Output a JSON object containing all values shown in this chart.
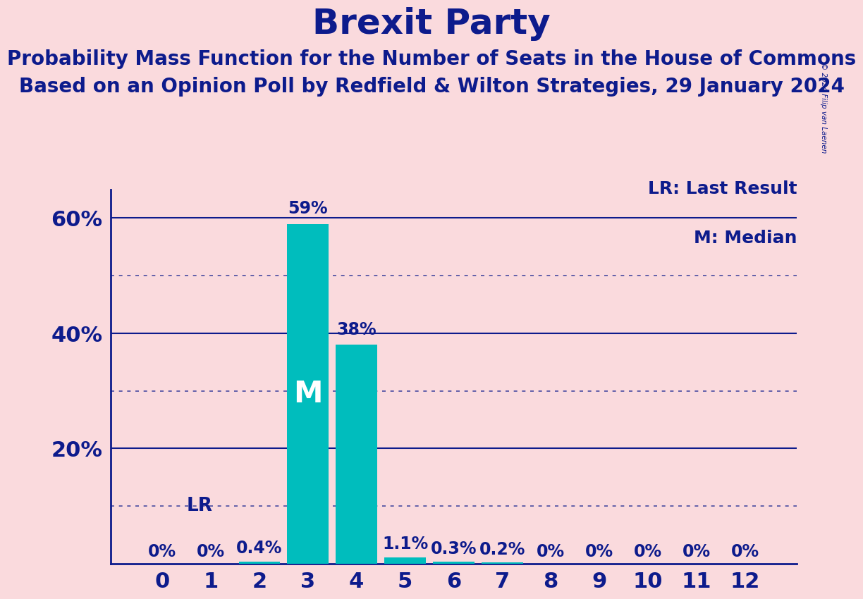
{
  "title": "Brexit Party",
  "subtitle1": "Probability Mass Function for the Number of Seats in the House of Commons",
  "subtitle2": "Based on an Opinion Poll by Redfield & Wilton Strategies, 29 January 2024",
  "copyright": "© 2024 Filip van Laenen",
  "categories": [
    0,
    1,
    2,
    3,
    4,
    5,
    6,
    7,
    8,
    9,
    10,
    11,
    12
  ],
  "values": [
    0.0,
    0.0,
    0.4,
    59.0,
    38.0,
    1.1,
    0.3,
    0.2,
    0.0,
    0.0,
    0.0,
    0.0,
    0.0
  ],
  "labels": [
    "0%",
    "0%",
    "0.4%",
    "59%",
    "38%",
    "1.1%",
    "0.3%",
    "0.2%",
    "0%",
    "0%",
    "0%",
    "0%",
    "0%"
  ],
  "bar_color": "#00BDBD",
  "median_bar": 3,
  "ylim": [
    0,
    65
  ],
  "yticks": [
    0,
    20,
    40,
    60
  ],
  "ytick_labels": [
    "",
    "20%",
    "40%",
    "60%"
  ],
  "background_color": "#FADADD",
  "text_color": "#0D1B8C",
  "title_fontsize": 36,
  "subtitle_fontsize": 20,
  "axis_label_fontsize": 22,
  "bar_label_fontsize": 17,
  "legend_fontsize": 18,
  "dotted_yticks": [
    10,
    30,
    50
  ],
  "solid_yticks": [
    20,
    40,
    60
  ],
  "median_label": "M",
  "lr_label": "LR",
  "legend_lr": "LR: Last Result",
  "legend_m": "M: Median"
}
